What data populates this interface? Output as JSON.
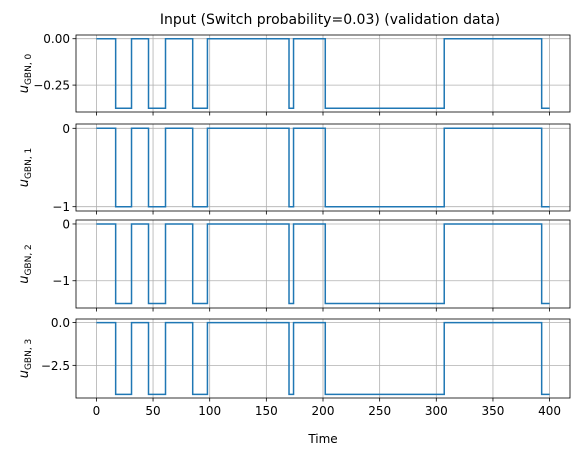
{
  "chart_data": {
    "type": "line",
    "title": "Input (Switch probability=0.03) (validation data)",
    "xlabel": "Time",
    "xlim": [
      -18,
      418
    ],
    "xticks": [
      0,
      50,
      100,
      150,
      200,
      250,
      300,
      350,
      400
    ],
    "grid": true,
    "line_color": "#1f77b4",
    "switch_times": [
      17,
      31,
      46,
      61,
      85,
      98,
      170,
      174,
      202,
      307,
      393
    ],
    "initial_state": "high",
    "x_end": 400,
    "panels": [
      {
        "ylabel_main": "u",
        "ylabel_sub": "GBN, 0",
        "high": 0.0,
        "low": -0.375,
        "ylim": [
          -0.395,
          0.02
        ],
        "yticks": [
          0.0,
          -0.25
        ],
        "ytick_labels": [
          "0.00",
          "−0.25"
        ]
      },
      {
        "ylabel_main": "u",
        "ylabel_sub": "GBN, 1",
        "high": 0.0,
        "low": -1.0,
        "ylim": [
          -1.055,
          0.055
        ],
        "yticks": [
          0,
          -1
        ],
        "ytick_labels": [
          "0",
          "−1"
        ]
      },
      {
        "ylabel_main": "u",
        "ylabel_sub": "GBN, 2",
        "high": 0.0,
        "low": -1.4,
        "ylim": [
          -1.48,
          0.07
        ],
        "yticks": [
          0,
          -1
        ],
        "ytick_labels": [
          "0",
          "−1"
        ]
      },
      {
        "ylabel_main": "u",
        "ylabel_sub": "GBN, 3",
        "high": 0.0,
        "low": -4.2,
        "ylim": [
          -4.41,
          0.21
        ],
        "yticks": [
          0.0,
          -2.5
        ],
        "ytick_labels": [
          "0.0",
          "−2.5"
        ]
      }
    ]
  }
}
